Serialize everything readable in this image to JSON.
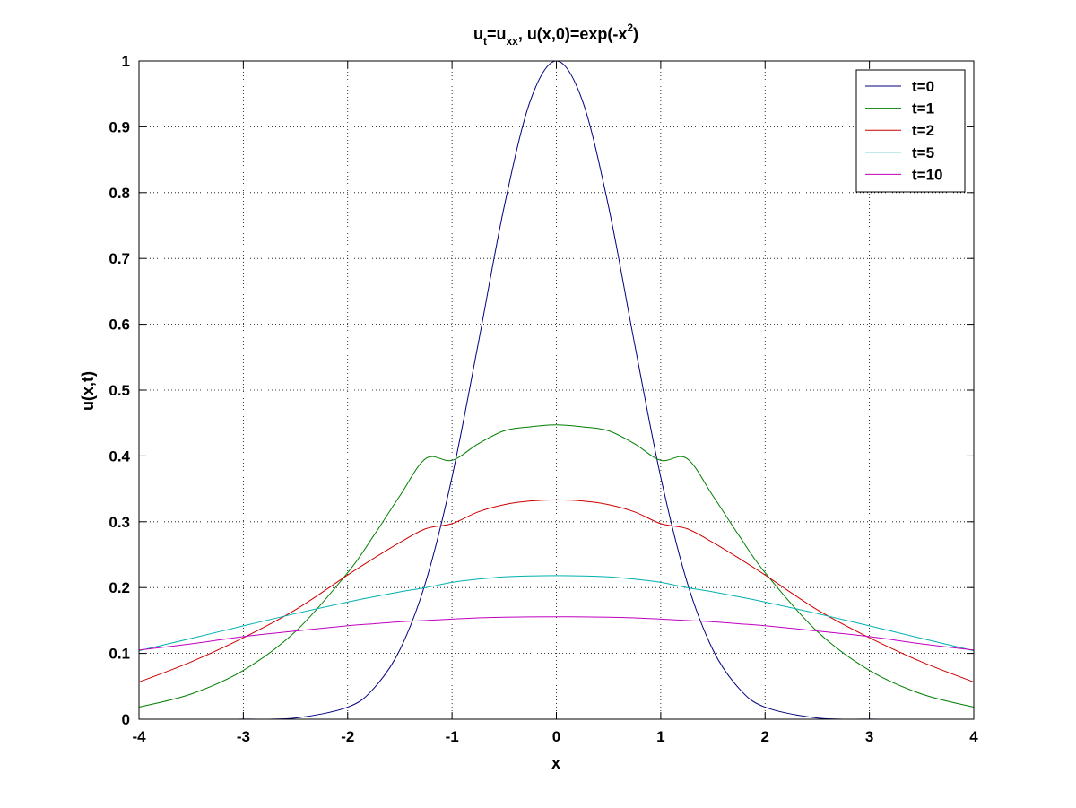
{
  "chart_data": {
    "type": "line",
    "title": {
      "part1": "u",
      "part1_sub": "t",
      "part2": "=u",
      "part2_sub": "xx",
      "part3": ", u(x,0)=exp(-x",
      "part3_sup": "2",
      "part4": ")"
    },
    "xlabel": "x",
    "ylabel": "u(x,t)",
    "xlim": [
      -4,
      4
    ],
    "ylim": [
      0,
      1
    ],
    "xticks": [
      -4,
      -3,
      -2,
      -1,
      0,
      1,
      2,
      3,
      4
    ],
    "yticks": [
      0,
      0.1,
      0.2,
      0.3,
      0.4,
      0.5,
      0.6,
      0.7,
      0.8,
      0.9,
      1
    ],
    "xtick_labels": [
      "-4",
      "-3",
      "-2",
      "-1",
      "0",
      "1",
      "2",
      "3",
      "4"
    ],
    "ytick_labels": [
      "0",
      "0.1",
      "0.2",
      "0.3",
      "0.4",
      "0.5",
      "0.6",
      "0.7",
      "0.8",
      "0.9",
      "1"
    ],
    "grid": true,
    "legend_position": "top-right",
    "x": [
      -4,
      -3.5,
      -3,
      -2.5,
      -2,
      -1.75,
      -1.5,
      -1.25,
      -1,
      -0.75,
      -0.5,
      -0.25,
      0,
      0.25,
      0.5,
      0.75,
      1,
      1.25,
      1.5,
      1.75,
      2,
      2.5,
      3,
      3.5,
      4
    ],
    "series": [
      {
        "name": "t=0",
        "color": "#00007f",
        "values": [
          0.0,
          0.0,
          0.0001,
          0.0019,
          0.0183,
          0.0468,
          0.1054,
          0.2096,
          0.3679,
          0.5698,
          0.7788,
          0.9394,
          1.0,
          0.9394,
          0.7788,
          0.5698,
          0.3679,
          0.2096,
          0.1054,
          0.0468,
          0.0183,
          0.0019,
          0.0001,
          0.0,
          0.0
        ]
      },
      {
        "name": "t=1",
        "color": "#007f00",
        "values": [
          0.0183,
          0.0383,
          0.0742,
          0.1333,
          0.2226,
          0.279,
          0.3394,
          0.3962,
          0.3933,
          0.4183,
          0.4382,
          0.4442,
          0.4472,
          0.4442,
          0.4382,
          0.4183,
          0.3933,
          0.3962,
          0.3394,
          0.279,
          0.2226,
          0.1333,
          0.0742,
          0.0383,
          0.0183
        ]
      },
      {
        "name": "t=2",
        "color": "#cc0000",
        "values": [
          0.0564,
          0.0871,
          0.1237,
          0.1663,
          0.2191,
          0.2445,
          0.2685,
          0.2895,
          0.2972,
          0.315,
          0.326,
          0.3315,
          0.3333,
          0.3315,
          0.326,
          0.315,
          0.2972,
          0.2895,
          0.2685,
          0.2445,
          0.2191,
          0.1663,
          0.1237,
          0.0871,
          0.0564
        ]
      },
      {
        "name": "t=5",
        "color": "#00b0b0",
        "values": [
          0.104,
          0.1228,
          0.1418,
          0.1605,
          0.178,
          0.186,
          0.1935,
          0.2,
          0.208,
          0.2128,
          0.2163,
          0.2177,
          0.2182,
          0.2177,
          0.2163,
          0.2128,
          0.208,
          0.2,
          0.1935,
          0.186,
          0.178,
          0.1605,
          0.1418,
          0.1228,
          0.104
        ]
      },
      {
        "name": "t=10",
        "color": "#bf00bf",
        "values": [
          0.105,
          0.1145,
          0.1255,
          0.134,
          0.142,
          0.145,
          0.148,
          0.15,
          0.152,
          0.154,
          0.155,
          0.1555,
          0.1557,
          0.1555,
          0.155,
          0.154,
          0.152,
          0.15,
          0.148,
          0.145,
          0.142,
          0.134,
          0.1255,
          0.1145,
          0.105
        ]
      }
    ]
  }
}
